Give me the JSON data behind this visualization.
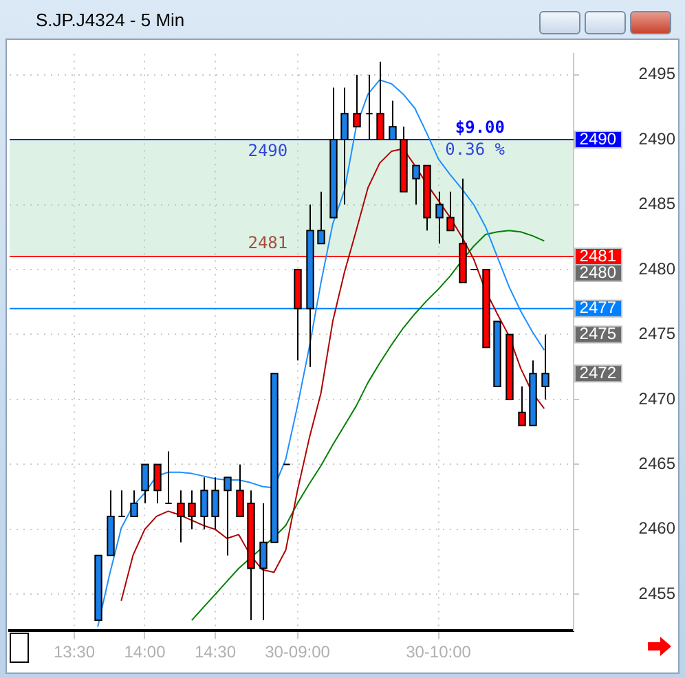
{
  "chart_data": {
    "type": "candlestick",
    "title": "S.JP.J4324 - 5 Min",
    "categories": [
      null,
      null,
      null,
      null,
      null,
      "13:30",
      null,
      null,
      null,
      null,
      null,
      "14:00",
      null,
      null,
      null,
      null,
      null,
      "14:30",
      null,
      null,
      null,
      null,
      null,
      null,
      "30-09:00",
      null,
      null,
      null,
      null,
      null,
      null,
      null,
      null,
      null,
      null,
      null,
      "30-10:00",
      null,
      null,
      null,
      null,
      null,
      null,
      null,
      null,
      null,
      null,
      null
    ],
    "ohlc": [
      null,
      null,
      null,
      null,
      null,
      null,
      null,
      [
        2453,
        2458,
        2453,
        2458
      ],
      [
        2458,
        2463,
        2458,
        2461
      ],
      [
        2461,
        2463,
        2461,
        2461
      ],
      [
        2461,
        2463,
        2461,
        2462
      ],
      [
        2463,
        2465,
        2462,
        2465
      ],
      [
        2465,
        2465,
        2462,
        2463
      ],
      [
        2462,
        2466,
        2462,
        2462
      ],
      [
        2462,
        2463,
        2459,
        2461
      ],
      [
        2462,
        2463,
        2460,
        2461
      ],
      [
        2461,
        2464,
        2460,
        2463
      ],
      [
        2461,
        2464,
        2460,
        2463
      ],
      [
        2463,
        2464,
        2458,
        2464
      ],
      [
        2463,
        2465,
        2461,
        2461
      ],
      [
        2462,
        2463,
        2453,
        2457
      ],
      [
        2457,
        2462,
        2453,
        2459
      ],
      [
        2459,
        2472,
        2459,
        2472
      ],
      [
        2465,
        2465,
        2465,
        2465
      ],
      [
        2480,
        2480,
        2473,
        2477
      ],
      [
        2477,
        2485,
        2472.5,
        2483
      ],
      [
        2482,
        2486,
        2482,
        2483
      ],
      [
        2484,
        2494,
        2484,
        2490
      ],
      [
        2490,
        2494,
        2485,
        2492
      ],
      [
        2492,
        2495,
        2491,
        2491
      ],
      [
        2492,
        2495,
        2490,
        2492
      ],
      [
        2492,
        2496,
        2490,
        2490
      ],
      [
        2490,
        2493,
        2490,
        2491
      ],
      [
        2490,
        2491,
        2486,
        2486
      ],
      [
        2487,
        2488,
        2485,
        2488
      ],
      [
        2488,
        2488,
        2483,
        2484
      ],
      [
        2484,
        2486,
        2482,
        2485
      ],
      [
        2484,
        2486,
        2483,
        2483
      ],
      [
        2482,
        2487,
        2479,
        2479
      ],
      [
        2480,
        2480,
        2480,
        2480
      ],
      [
        2480,
        2480,
        2474,
        2474
      ],
      [
        2471,
        2476,
        2471,
        2476
      ],
      [
        2475,
        2475,
        2470,
        2470
      ],
      [
        2469,
        2471,
        2468,
        2468
      ],
      [
        2468,
        2473,
        2468,
        2472
      ],
      [
        2471,
        2475,
        2470,
        2472
      ],
      null,
      null
    ],
    "colors": [
      null,
      null,
      null,
      null,
      null,
      null,
      null,
      "#1a7fe6",
      "#1a7fe6",
      "#000000",
      "#1a7fe6",
      "#1a7fe6",
      "#ff0000",
      "#000000",
      "#ff0000",
      "#ff0000",
      "#1a7fe6",
      "#1a7fe6",
      "#1a7fe6",
      "#ff0000",
      "#ff0000",
      "#1a7fe6",
      "#1a7fe6",
      "#000000",
      "#ff0000",
      "#1a7fe6",
      "#1a7fe6",
      "#1a7fe6",
      "#1a7fe6",
      "#ff0000",
      "#000000",
      "#ff0000",
      "#1a7fe6",
      "#ff0000",
      "#1a7fe6",
      "#ff0000",
      "#1a7fe6",
      "#ff0000",
      "#ff0000",
      "#000000",
      "#ff0000",
      "#1a7fe6",
      "#ff0000",
      "#ff0000",
      "#1a7fe6",
      "#1a7fe6",
      null,
      null
    ],
    "series": [
      {
        "type": "line",
        "color": "#1e90ff",
        "values": [
          null,
          null,
          null,
          null,
          null,
          null,
          null,
          2452.5,
          2456.5,
          2460.1,
          2461.8,
          2462.8,
          2464.1,
          2464.4,
          2464.4,
          2464.3,
          2464.1,
          2463.9,
          2463.8,
          2463.8,
          2463.6,
          2463.3,
          2463.2,
          2465.4,
          2469.5,
          2474,
          2479,
          2483.5,
          2486.1,
          2491,
          2493.5,
          2494.6,
          2494.3,
          2493.5,
          2492.4,
          2490.5,
          2488.5,
          2487.3,
          2486.2,
          2485,
          2483.3,
          2481,
          2478.7,
          2476.8,
          2475.2,
          2473.8,
          null,
          null
        ]
      },
      {
        "type": "line",
        "color": "#b00000",
        "values": [
          null,
          null,
          null,
          null,
          null,
          null,
          null,
          null,
          null,
          2454.5,
          2458,
          2460,
          2461,
          2461.4,
          2461.1,
          2460.7,
          2460.3,
          2460,
          2459.3,
          2459.6,
          2458,
          2456.9,
          2456.7,
          2458.4,
          2463,
          2467,
          2470.5,
          2476,
          2479.8,
          2483,
          2486.3,
          2488.2,
          2489.1,
          2489.3,
          2488,
          2486.6,
          2485.3,
          2484,
          2482.5,
          2480.8,
          2478.4,
          2476.6,
          2474.9,
          2472.4,
          2470.5,
          2469.3,
          null,
          null
        ]
      },
      {
        "type": "line",
        "color": "#008000",
        "values": [
          null,
          null,
          null,
          null,
          null,
          null,
          null,
          null,
          null,
          null,
          null,
          null,
          null,
          null,
          null,
          2453,
          2454,
          2455,
          2456,
          2457,
          2457.8,
          2458.6,
          2459.4,
          2460.3,
          2462,
          2463.5,
          2464.9,
          2466.5,
          2468,
          2469.5,
          2471.3,
          2472.8,
          2474.2,
          2475.5,
          2476.6,
          2477.6,
          2478.5,
          2479.5,
          2480.7,
          2481.8,
          2482.7,
          2482.9,
          2483,
          2482.9,
          2482.6,
          2482.2,
          null,
          null
        ]
      }
    ],
    "ylim": [
      2452.2,
      2496.6
    ],
    "yticks": [
      2455,
      2460,
      2465,
      2470,
      2475,
      2480,
      2485,
      2490,
      2495
    ],
    "grid": true,
    "legend": false,
    "line_style": "solid",
    "marker": "none",
    "bands": [
      {
        "axis": "y",
        "from": 2481,
        "to": 2490,
        "color": "#9dd9b4"
      }
    ],
    "ref_lines": [
      {
        "axis": "y",
        "value": 2490,
        "label": "2490",
        "color": "#0000ff"
      },
      {
        "axis": "y",
        "value": 2481,
        "label": "2481",
        "color": "#ff0000"
      },
      {
        "axis": "y",
        "value": 2477,
        "label": "2477",
        "color": "#0080ff"
      }
    ],
    "annotations": [
      {
        "text": "$9.00",
        "y": 2490
      },
      {
        "text": "0.36 %",
        "y": 2490
      },
      {
        "text": "2490",
        "y": 2490
      },
      {
        "text": "2481",
        "y": 2481
      },
      "2480",
      "2475",
      "2472"
    ]
  }
}
